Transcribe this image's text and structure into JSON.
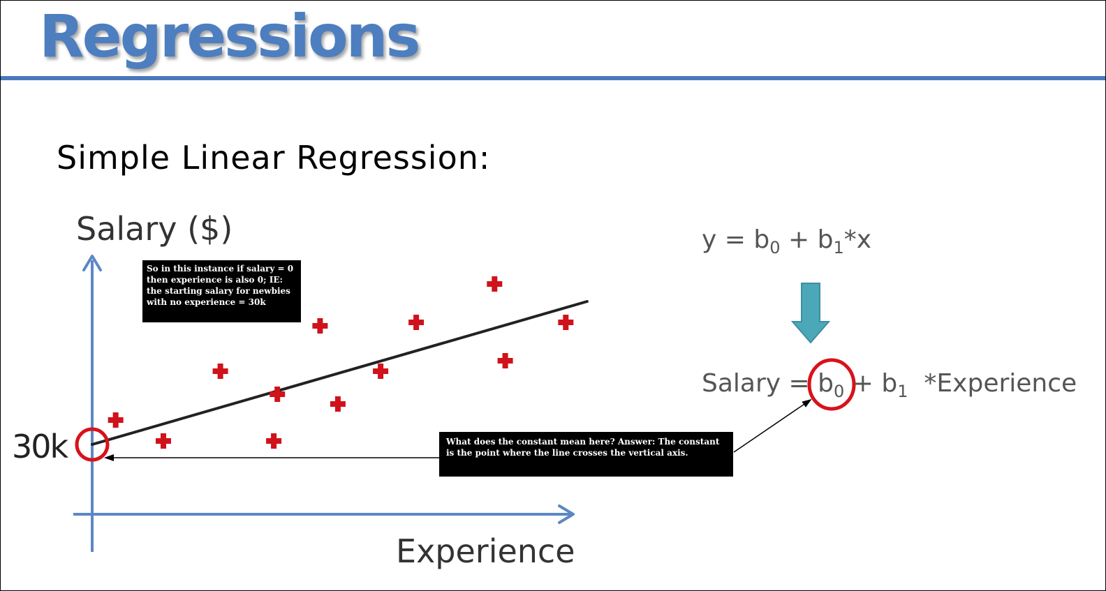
{
  "slide": {
    "title": "Regressions",
    "subtitle": "Simple Linear Regression:"
  },
  "equations": {
    "general": {
      "y": "y",
      "eq": "=",
      "b0": "b",
      "b0_sub": "0",
      "plus": "+",
      "b1": "b",
      "b1_sub": "1",
      "tail": "*x"
    },
    "specific": {
      "lhs": "Salary",
      "eq": "=",
      "b0": "b",
      "b0_sub": "0",
      "plus": "+",
      "b1": "b",
      "b1_sub": "1",
      "tail": "*Experience"
    }
  },
  "notes": {
    "top": "So in this instance if salary = 0 then experience is also 0; IE: the starting salary for newbies with no experience = 30k",
    "bottom": "What does the constant mean here? Answer: The constant is the point where the line crosses the vertical axis."
  },
  "colors": {
    "title": "#4d7ebf",
    "rule": "#4a78bb",
    "axis": "#5b87c5",
    "point": "#d0121b",
    "highlight": "#d8121b",
    "line": "#222222",
    "down_arrow": "#4aa8b8"
  },
  "chart_data": {
    "type": "scatter",
    "xlabel": "Experience",
    "ylabel": "Salary ($)",
    "y_tick": "30k",
    "grid": false,
    "points": [
      {
        "x": 0.33,
        "y": 0.35
      },
      {
        "x": 1.0,
        "y": 0.05
      },
      {
        "x": 1.8,
        "y": 1.05
      },
      {
        "x": 2.55,
        "y": 0.05
      },
      {
        "x": 2.6,
        "y": 0.72
      },
      {
        "x": 3.2,
        "y": 1.7
      },
      {
        "x": 3.45,
        "y": 0.58
      },
      {
        "x": 4.05,
        "y": 1.05
      },
      {
        "x": 4.55,
        "y": 1.75
      },
      {
        "x": 5.65,
        "y": 2.3
      },
      {
        "x": 5.8,
        "y": 1.2
      },
      {
        "x": 6.65,
        "y": 1.75
      }
    ],
    "regression_line": {
      "x": [
        0,
        6.95
      ],
      "y": [
        0,
        2.05
      ]
    },
    "highlight": {
      "x": 0,
      "y": 0,
      "label": "30k"
    }
  }
}
